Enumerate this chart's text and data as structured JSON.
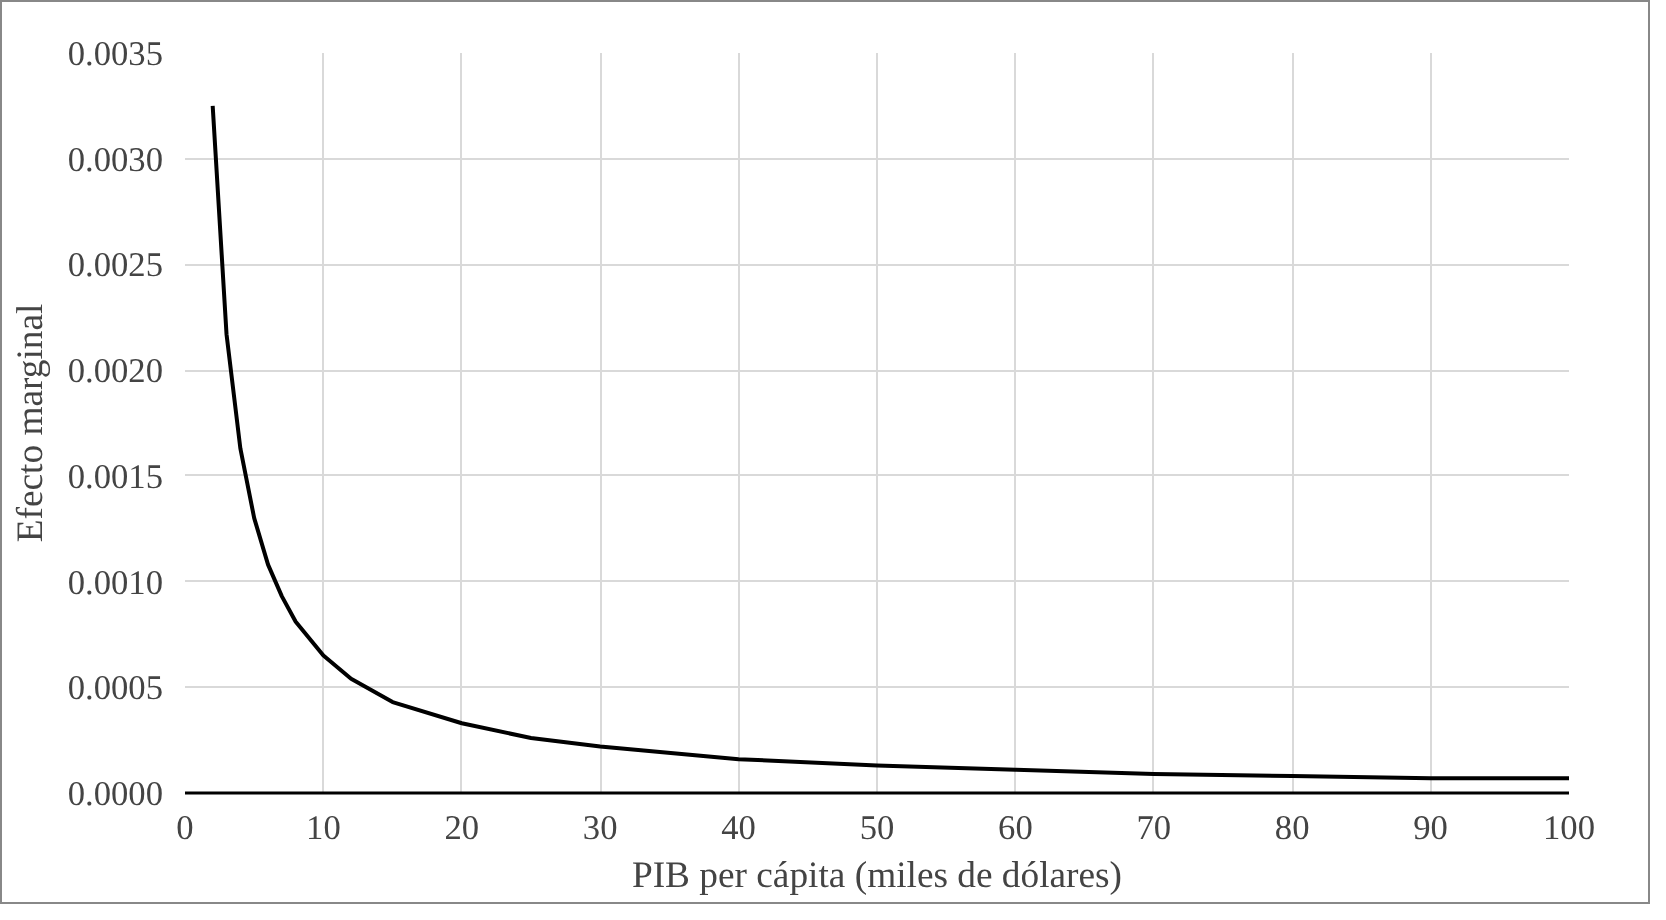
{
  "chart_data": {
    "type": "line",
    "xlabel": "PIB per cápita (miles de dólares)",
    "ylabel": "Efecto marginal",
    "x": [
      2,
      3,
      4,
      5,
      6,
      7,
      8,
      10,
      12,
      15,
      20,
      25,
      30,
      40,
      50,
      60,
      70,
      80,
      90,
      100
    ],
    "series": [
      {
        "color": "#000000",
        "values": [
          0.00325,
          0.00217,
          0.00163,
          0.0013,
          0.00108,
          0.00093,
          0.00081,
          0.00065,
          0.00054,
          0.00043,
          0.00033,
          0.00026,
          0.00022,
          0.00016,
          0.00013,
          0.00011,
          9e-05,
          8e-05,
          7e-05,
          7e-05
        ]
      }
    ],
    "xlim": [
      0,
      100
    ],
    "xticks": [
      0,
      10,
      20,
      30,
      40,
      50,
      60,
      70,
      80,
      90,
      100
    ],
    "ylim": [
      0,
      0.0035
    ],
    "yticks": [
      {
        "value": 0,
        "label": "0.0000"
      },
      {
        "value": 0.0005,
        "label": "0.0005"
      },
      {
        "value": 0.001,
        "label": "0.0010"
      },
      {
        "value": 0.0015,
        "label": "0.0015"
      },
      {
        "value": 0.002,
        "label": "0.0020"
      },
      {
        "value": 0.0025,
        "label": "0.0025"
      },
      {
        "value": 0.003,
        "label": "0.0030"
      },
      {
        "value": 0.0035,
        "label": "0.0035"
      }
    ],
    "grid": true,
    "marker": "none",
    "line_style": "solid"
  }
}
